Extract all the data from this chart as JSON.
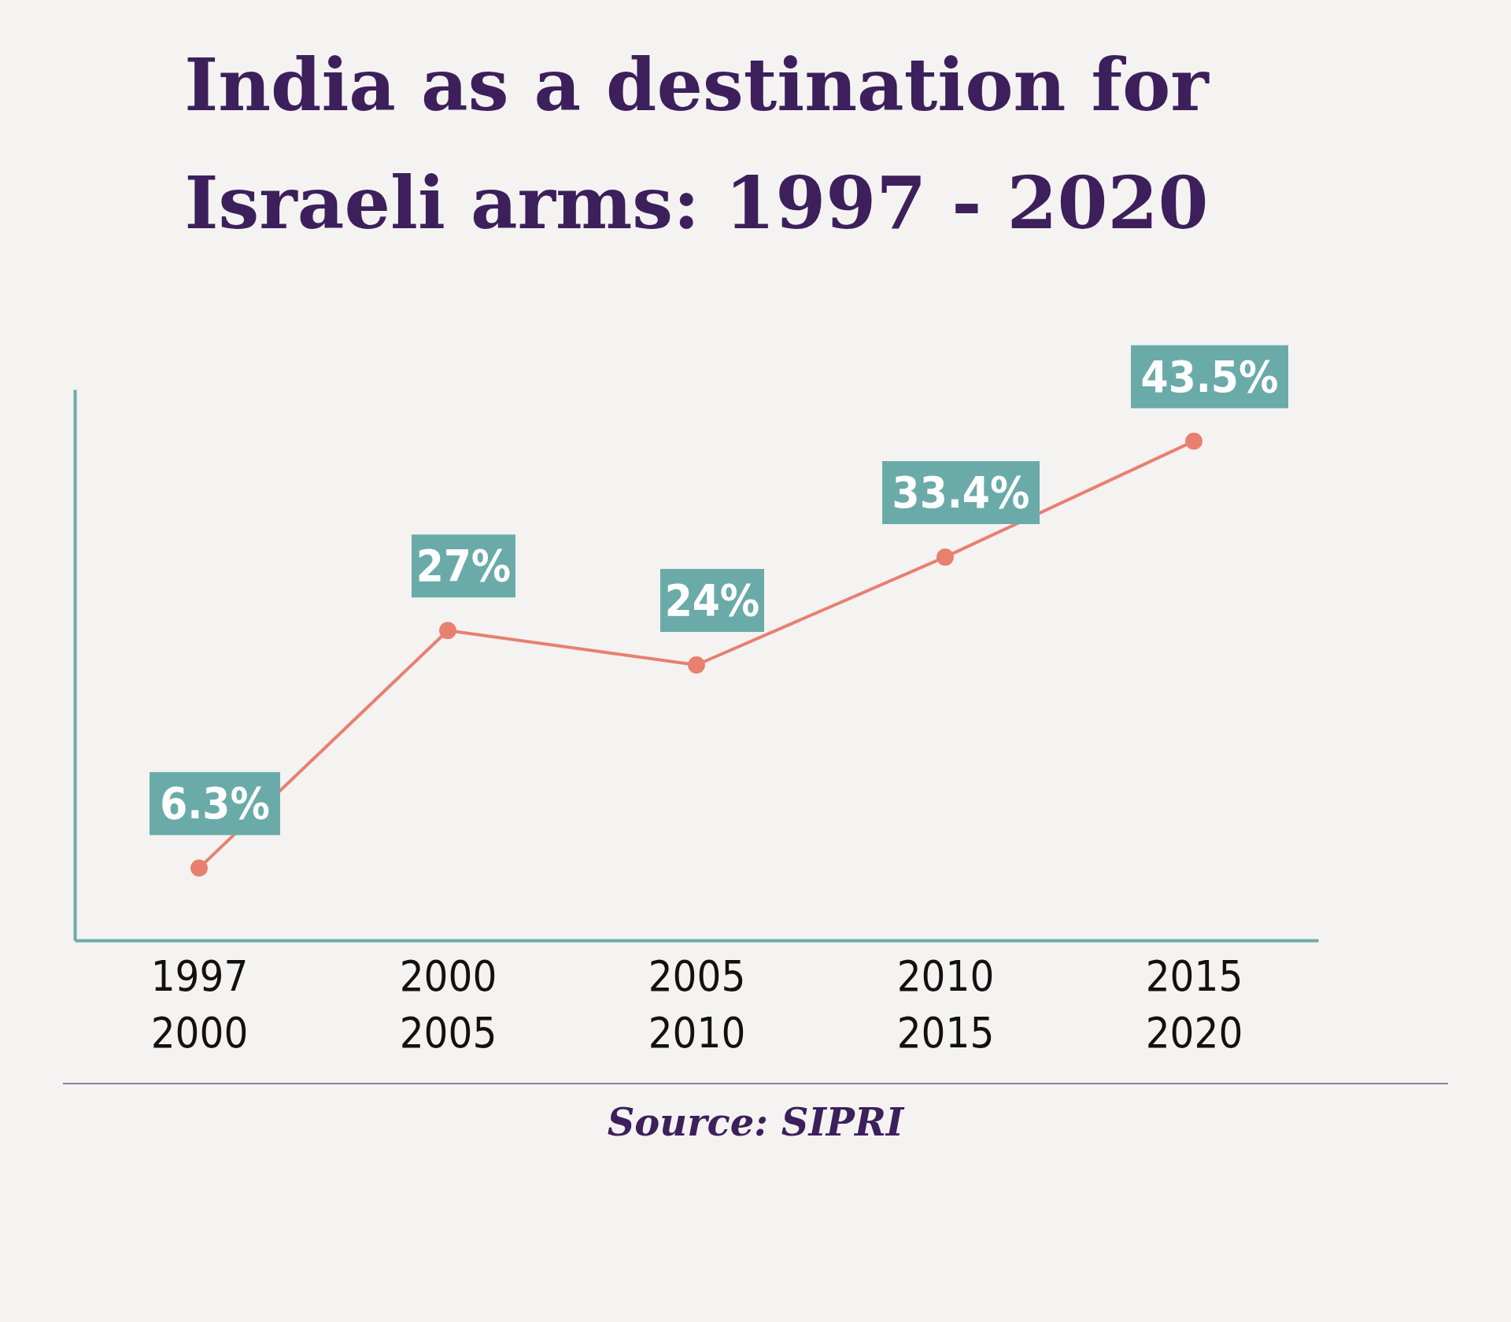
{
  "chart_data": {
    "type": "line",
    "title": "India as a destination for\nIsraeli arms: 1997 - 2020",
    "categories": [
      "1997\n2000",
      "2000\n2005",
      "2005\n2010",
      "2010\n2015",
      "2015\n2020"
    ],
    "series": [
      {
        "color": "#e8806f",
        "values": [
          6.3,
          27,
          24,
          33.4,
          43.5
        ],
        "value_labels": [
          "6.3%",
          "27%",
          "24%",
          "33.4%",
          "43.5%"
        ]
      }
    ],
    "ylim": [
      0,
      48
    ],
    "tick_labels": "x",
    "marker": "circle",
    "grid": false,
    "legend": false,
    "annotations": [
      "Source: SIPRI"
    ]
  }
}
